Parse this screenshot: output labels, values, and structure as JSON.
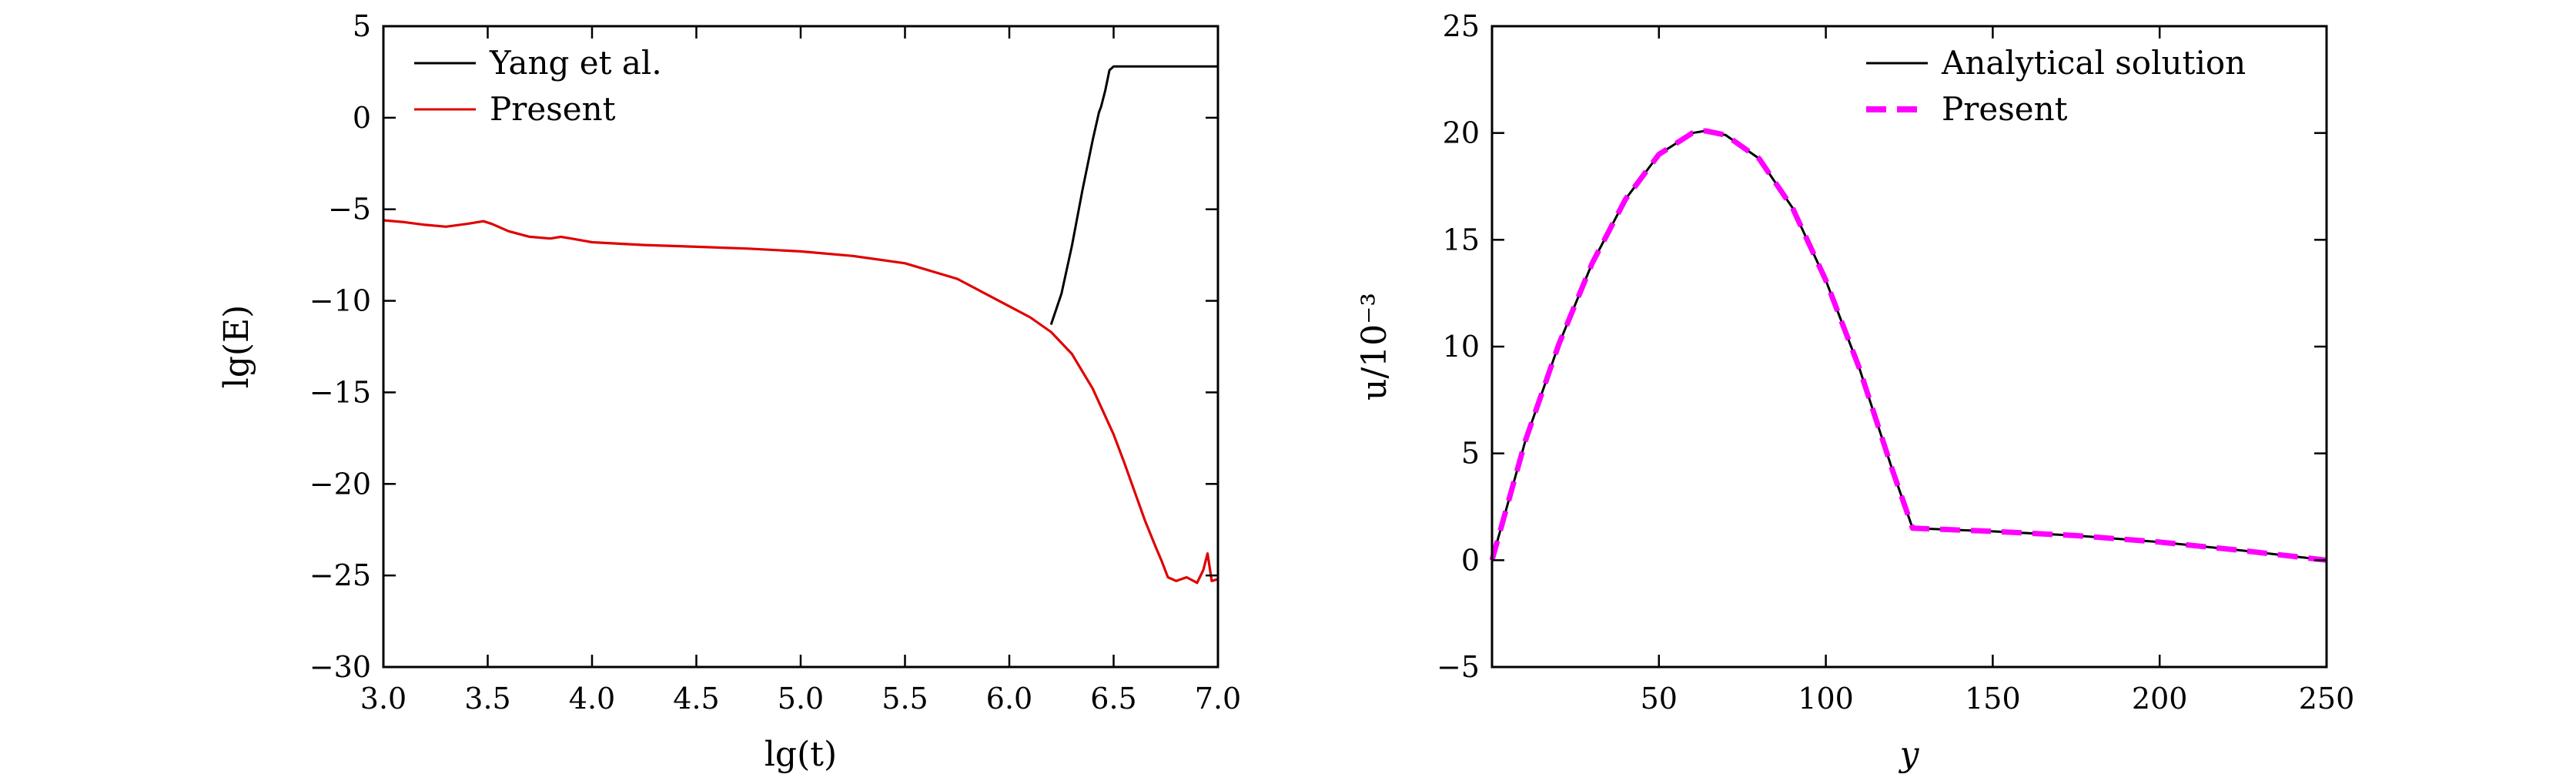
{
  "chart_data": [
    {
      "type": "line",
      "xlabel": "lg(t)",
      "ylabel": "lg(E)",
      "xlim": [
        3.0,
        7.0
      ],
      "ylim": [
        -30,
        5
      ],
      "xticks": [
        3.0,
        3.5,
        4.0,
        4.5,
        5.0,
        5.5,
        6.0,
        6.5,
        7.0
      ],
      "xtick_labels": [
        "3.0",
        "3.5",
        "4.0",
        "4.5",
        "5.0",
        "5.5",
        "6.0",
        "6.5",
        "7.0"
      ],
      "yticks": [
        5,
        0,
        -5,
        -10,
        -15,
        -20,
        -25,
        -30
      ],
      "ytick_labels": [
        "5",
        "0",
        "−5",
        "−10",
        "−15",
        "−20",
        "−25",
        "−30"
      ],
      "legend_position": "top-left",
      "series": [
        {
          "name": "Yang et al.",
          "color": "#000000",
          "x": [
            6.2,
            6.25,
            6.3,
            6.35,
            6.4,
            6.43,
            6.44,
            6.46,
            6.48,
            6.5,
            6.6,
            6.8,
            7.0
          ],
          "y": [
            -11.3,
            -9.6,
            -7.0,
            -4.0,
            -1.2,
            0.3,
            0.6,
            1.5,
            2.6,
            2.8,
            2.8,
            2.8,
            2.8
          ]
        },
        {
          "name": "Present",
          "color": "#e00000",
          "x": [
            3.0,
            3.1,
            3.2,
            3.3,
            3.4,
            3.48,
            3.52,
            3.6,
            3.7,
            3.8,
            3.85,
            3.9,
            4.0,
            4.25,
            4.5,
            4.75,
            5.0,
            5.25,
            5.5,
            5.75,
            6.0,
            6.1,
            6.2,
            6.3,
            6.4,
            6.5,
            6.55,
            6.6,
            6.65,
            6.7,
            6.73,
            6.76,
            6.8,
            6.85,
            6.9,
            6.93,
            6.95,
            6.97,
            7.0
          ],
          "y": [
            -5.6,
            -5.7,
            -5.85,
            -5.95,
            -5.8,
            -5.65,
            -5.8,
            -6.2,
            -6.5,
            -6.6,
            -6.5,
            -6.6,
            -6.8,
            -6.95,
            -7.05,
            -7.15,
            -7.3,
            -7.55,
            -7.95,
            -8.8,
            -10.3,
            -10.9,
            -11.7,
            -12.9,
            -14.8,
            -17.3,
            -18.8,
            -20.4,
            -22.0,
            -23.4,
            -24.2,
            -25.1,
            -25.3,
            -25.1,
            -25.4,
            -24.7,
            -23.8,
            -25.3,
            -25.2
          ]
        }
      ]
    },
    {
      "type": "line",
      "xlabel": "y",
      "ylabel": "u/10⁻³",
      "xlim": [
        0,
        250
      ],
      "ylim": [
        -5,
        25
      ],
      "xticks": [
        50,
        100,
        150,
        200,
        250
      ],
      "xtick_labels": [
        "50",
        "100",
        "150",
        "200",
        "250"
      ],
      "yticks": [
        25,
        20,
        15,
        10,
        5,
        0,
        -5
      ],
      "ytick_labels": [
        "25",
        "20",
        "15",
        "10",
        "5",
        "0",
        "−5"
      ],
      "legend_position": "top-right",
      "series": [
        {
          "name": "Analytical solution",
          "color": "#000000",
          "style": "solid",
          "x": [
            0,
            10,
            20,
            30,
            40,
            50,
            60,
            64,
            70,
            80,
            90,
            100,
            110,
            120,
            126,
            150,
            175,
            200,
            225,
            250
          ],
          "y": [
            0.0,
            5.6,
            10.1,
            13.9,
            16.9,
            19.0,
            20.0,
            20.1,
            19.9,
            18.8,
            16.5,
            13.1,
            9.0,
            4.2,
            1.5,
            1.35,
            1.15,
            0.85,
            0.45,
            0.0
          ]
        },
        {
          "name": "Present",
          "color": "#ff00ff",
          "style": "dashed",
          "x": [
            0,
            10,
            20,
            30,
            40,
            50,
            60,
            64,
            70,
            80,
            90,
            100,
            110,
            120,
            126,
            150,
            175,
            200,
            225,
            250
          ],
          "y": [
            0.0,
            5.6,
            10.1,
            13.9,
            16.9,
            19.0,
            20.0,
            20.1,
            19.9,
            18.8,
            16.5,
            13.1,
            9.0,
            4.2,
            1.5,
            1.35,
            1.15,
            0.85,
            0.45,
            0.0
          ]
        }
      ]
    }
  ]
}
